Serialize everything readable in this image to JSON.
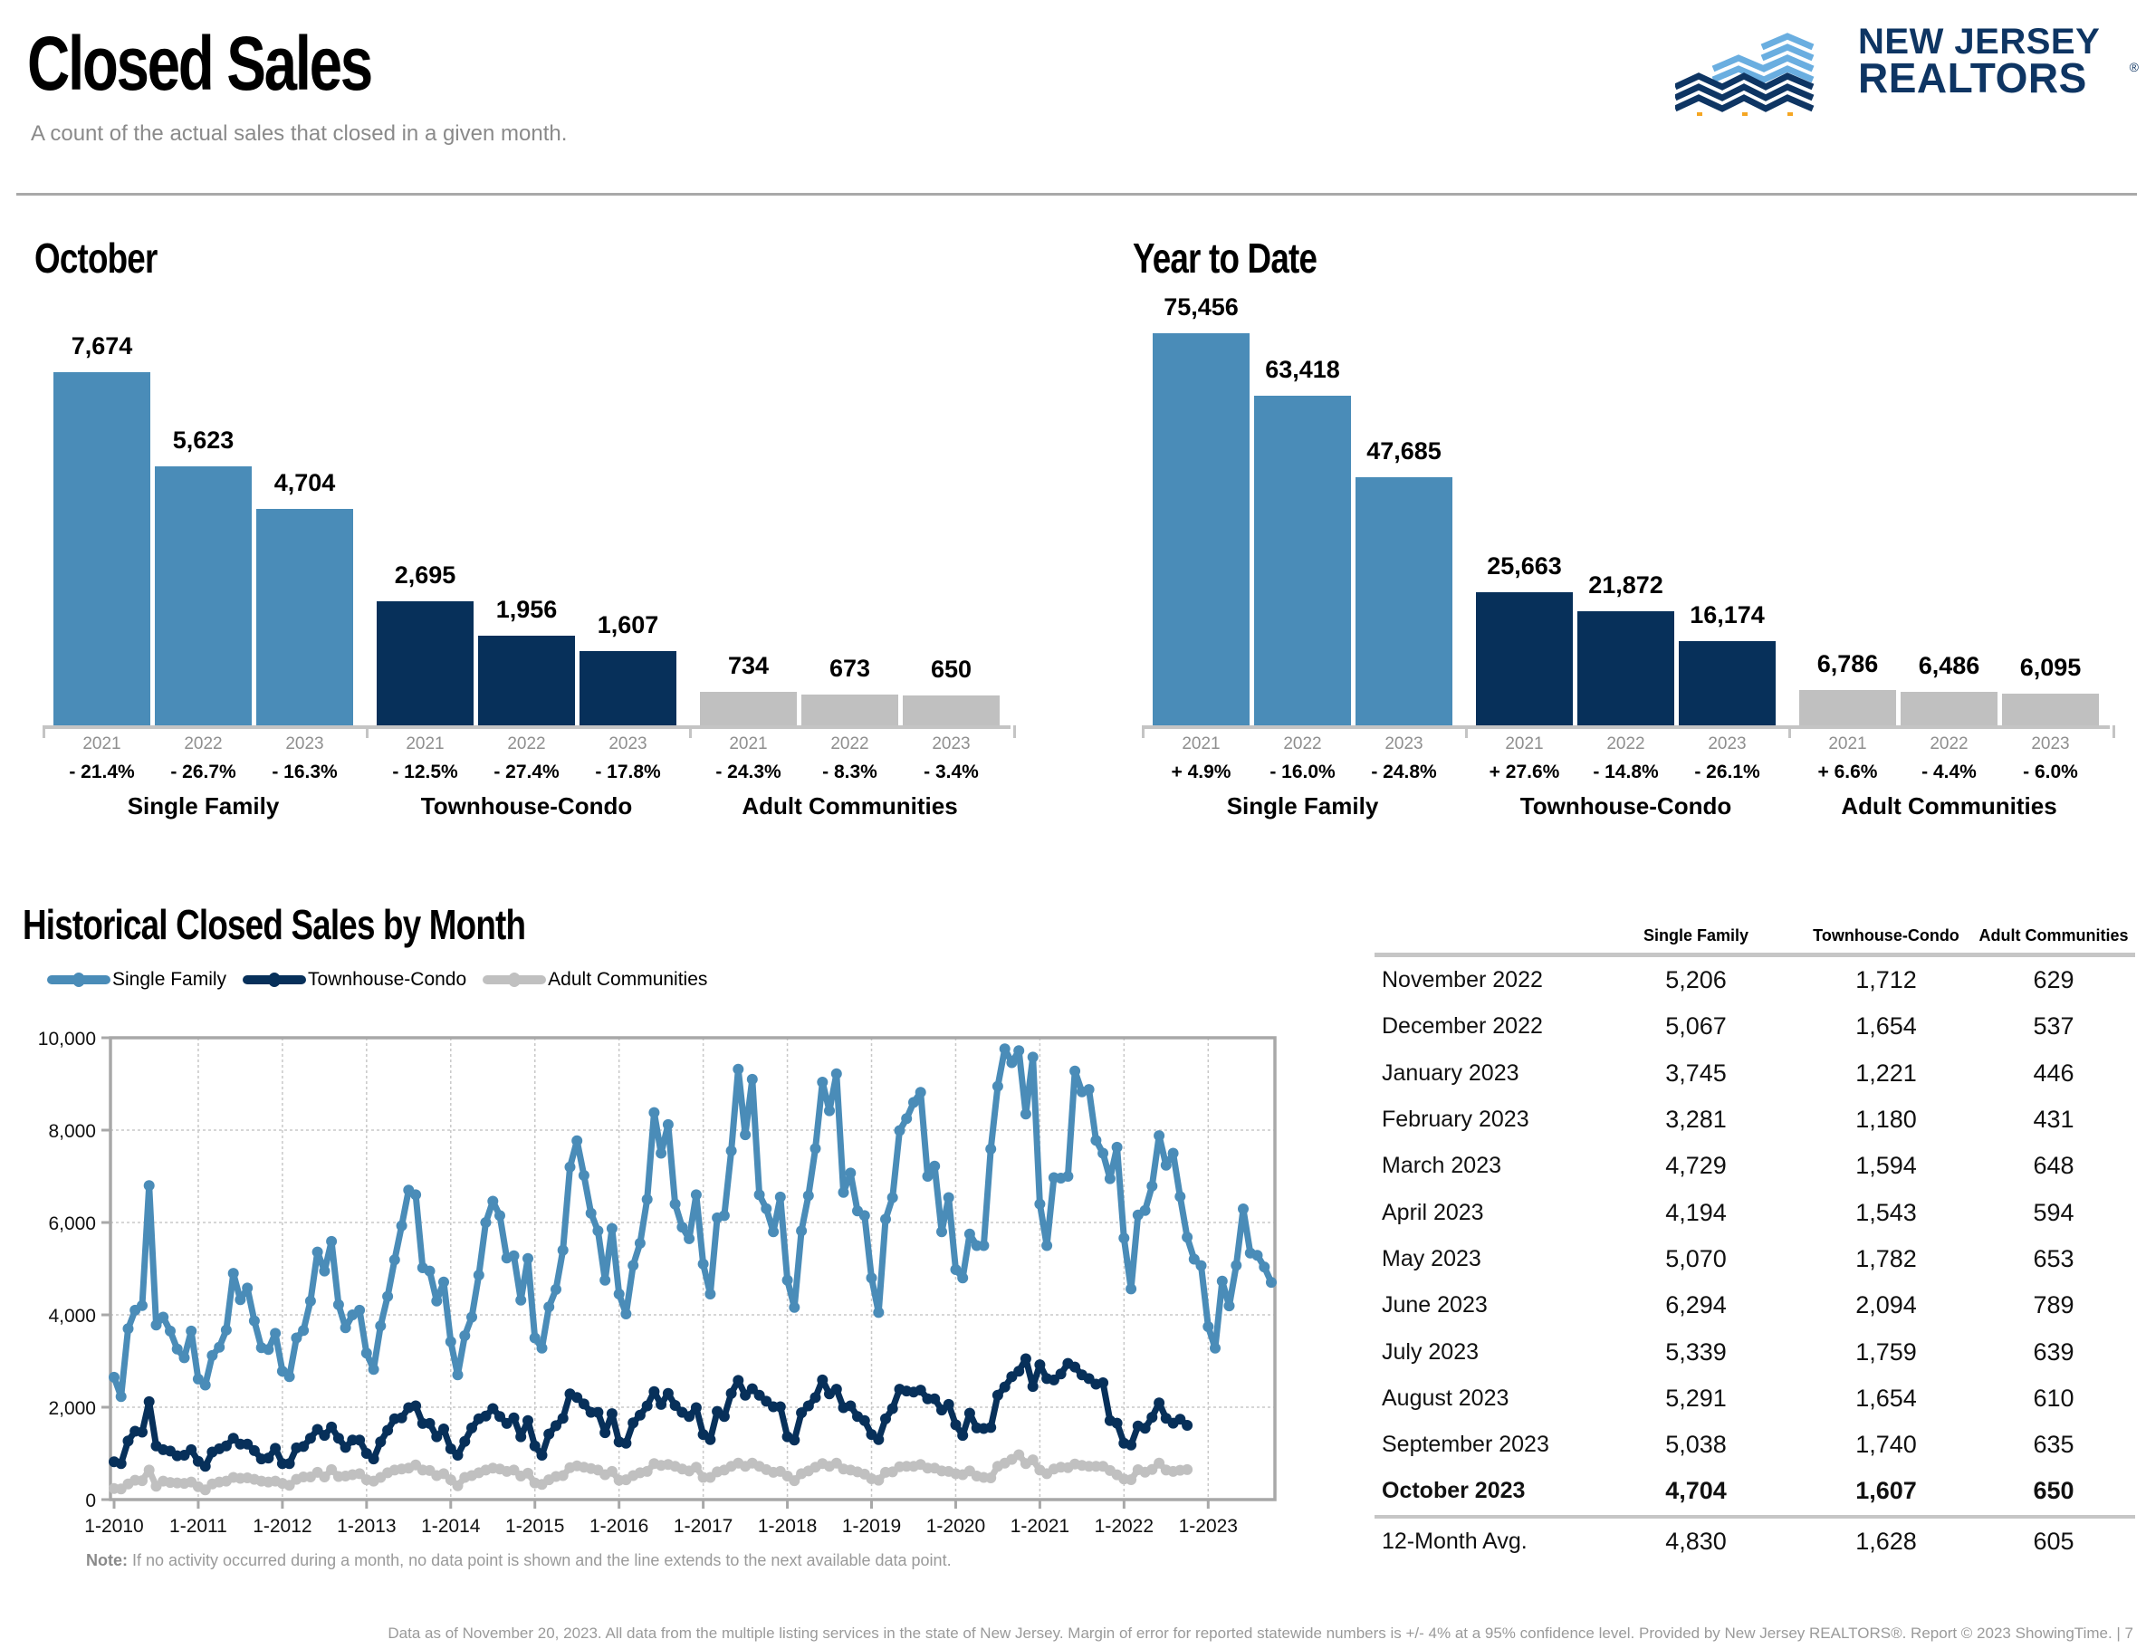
{
  "header": {
    "title": "Closed Sales",
    "subtitle": "A count of the actual sales that closed in a given month."
  },
  "logo": {
    "line1": "NEW JERSEY",
    "line2": "REALTORS",
    "registered": "®",
    "icon": "buildings-chevron-icon"
  },
  "colors": {
    "single_family": "#4a8cb8",
    "townhouse_condo": "#07305a",
    "adult_communities": "#c0c0c0",
    "logo_navy": "#0e3563",
    "logo_light_blue": "#6aaee0",
    "logo_gold": "#f5a623"
  },
  "chart_data": [
    {
      "type": "bar",
      "title": "October",
      "groups": [
        "Single Family",
        "Townhouse-Condo",
        "Adult Communities"
      ],
      "categories": [
        "2021",
        "2022",
        "2023"
      ],
      "series": [
        {
          "name": "Single Family",
          "values": [
            7674,
            5623,
            4704
          ],
          "value_labels": [
            "7,674",
            "5,623",
            "4,704"
          ],
          "pct_change": [
            "- 21.4%",
            "- 26.7%",
            "- 16.3%"
          ]
        },
        {
          "name": "Townhouse-Condo",
          "values": [
            2695,
            1956,
            1607
          ],
          "value_labels": [
            "2,695",
            "1,956",
            "1,607"
          ],
          "pct_change": [
            "- 12.5%",
            "- 27.4%",
            "- 17.8%"
          ]
        },
        {
          "name": "Adult Communities",
          "values": [
            734,
            673,
            650
          ],
          "value_labels": [
            "734",
            "673",
            "650"
          ],
          "pct_change": [
            "- 24.3%",
            "- 8.3%",
            "- 3.4%"
          ]
        }
      ]
    },
    {
      "type": "bar",
      "title": "Year to Date",
      "groups": [
        "Single Family",
        "Townhouse-Condo",
        "Adult Communities"
      ],
      "categories": [
        "2021",
        "2022",
        "2023"
      ],
      "series": [
        {
          "name": "Single Family",
          "values": [
            75456,
            63418,
            47685
          ],
          "value_labels": [
            "75,456",
            "63,418",
            "47,685"
          ],
          "pct_change": [
            "+ 4.9%",
            "- 16.0%",
            "- 24.8%"
          ]
        },
        {
          "name": "Townhouse-Condo",
          "values": [
            25663,
            21872,
            16174
          ],
          "value_labels": [
            "25,663",
            "21,872",
            "16,174"
          ],
          "pct_change": [
            "+ 27.6%",
            "- 14.8%",
            "- 26.1%"
          ]
        },
        {
          "name": "Adult Communities",
          "values": [
            6786,
            6486,
            6095
          ],
          "value_labels": [
            "6,786",
            "6,486",
            "6,095"
          ],
          "pct_change": [
            "+ 6.6%",
            "- 4.4%",
            "- 6.0%"
          ]
        }
      ]
    },
    {
      "type": "line",
      "title": "Historical Closed Sales by Month",
      "x_start": "1-2010",
      "x_tick_labels": [
        "1-2010",
        "1-2011",
        "1-2012",
        "1-2013",
        "1-2014",
        "1-2015",
        "1-2016",
        "1-2017",
        "1-2018",
        "1-2019",
        "1-2020",
        "1-2021",
        "1-2022",
        "1-2023"
      ],
      "y_tick_labels": [
        "0",
        "2,000",
        "4,000",
        "6,000",
        "8,000",
        "10,000"
      ],
      "y_ticks": [
        0,
        2000,
        4000,
        6000,
        8000,
        10000
      ],
      "ylim": [
        0,
        10000
      ],
      "grid": true,
      "legend_position": "top-left",
      "series": [
        {
          "name": "Single Family",
          "values": [
            2650,
            2230,
            3700,
            4100,
            4200,
            6800,
            3780,
            3950,
            3650,
            3260,
            3070,
            3650,
            2610,
            2480,
            3120,
            3300,
            3670,
            4900,
            4330,
            4580,
            3870,
            3290,
            3250,
            3600,
            2780,
            2660,
            3500,
            3660,
            4300,
            5360,
            4950,
            5590,
            4220,
            3720,
            4000,
            4100,
            3170,
            2820,
            3760,
            4400,
            5190,
            5930,
            6700,
            6600,
            5020,
            4950,
            4300,
            4710,
            3420,
            2700,
            3550,
            3950,
            4860,
            6000,
            6460,
            6150,
            5230,
            5280,
            4320,
            5220,
            3500,
            3280,
            4170,
            4550,
            5400,
            7200,
            7770,
            7020,
            6200,
            5820,
            4750,
            5870,
            4450,
            4020,
            5070,
            5550,
            6500,
            8380,
            7500,
            8120,
            6400,
            5900,
            5650,
            6600,
            5100,
            4450,
            6100,
            6150,
            7550,
            9320,
            7900,
            9100,
            6600,
            6300,
            5800,
            6550,
            4750,
            4160,
            5820,
            6580,
            7600,
            9040,
            8420,
            9220,
            6650,
            7070,
            6250,
            6150,
            4800,
            4050,
            6070,
            6540,
            7990,
            8250,
            8600,
            8820,
            7000,
            7220,
            5800,
            6540,
            4980,
            4800,
            5750,
            5500,
            5500,
            7590,
            8950,
            9760,
            9460,
            9720,
            8350,
            9580,
            6400,
            5500,
            6970,
            6960,
            7000,
            9280,
            8830,
            8880,
            7780,
            7500,
            6950,
            7630,
            5660,
            4560,
            6160,
            6260,
            6790,
            7880,
            7240,
            7500,
            6560,
            5680,
            5206,
            5067,
            3745,
            3281,
            4729,
            4194,
            5070,
            6294,
            5339,
            5291,
            5038,
            4704
          ]
        },
        {
          "name": "Townhouse-Condo",
          "values": [
            820,
            780,
            1270,
            1480,
            1460,
            2120,
            1160,
            1080,
            1050,
            950,
            960,
            1080,
            830,
            720,
            1030,
            1100,
            1160,
            1330,
            1200,
            1200,
            1060,
            880,
            900,
            1110,
            780,
            780,
            1120,
            1150,
            1330,
            1520,
            1390,
            1570,
            1330,
            1130,
            1290,
            1290,
            1000,
            880,
            1250,
            1500,
            1750,
            1770,
            1990,
            2030,
            1650,
            1650,
            1360,
            1530,
            1100,
            960,
            1260,
            1550,
            1750,
            1810,
            1970,
            1800,
            1650,
            1770,
            1360,
            1710,
            1160,
            960,
            1420,
            1600,
            1760,
            2290,
            2210,
            2070,
            1890,
            1890,
            1450,
            1860,
            1250,
            1220,
            1660,
            1830,
            2030,
            2340,
            2060,
            2300,
            2040,
            1890,
            1800,
            1990,
            1410,
            1300,
            1910,
            1800,
            2300,
            2580,
            2260,
            2400,
            2260,
            2130,
            2010,
            2010,
            1360,
            1290,
            1880,
            2030,
            2210,
            2590,
            2290,
            2390,
            1990,
            2030,
            1800,
            1710,
            1410,
            1300,
            1750,
            1970,
            2390,
            2350,
            2330,
            2370,
            2180,
            2180,
            1940,
            2060,
            1620,
            1390,
            1870,
            1550,
            1540,
            1560,
            2260,
            2440,
            2660,
            2780,
            3050,
            2450,
            2920,
            2620,
            2590,
            2720,
            2950,
            2870,
            2700,
            2620,
            2500,
            2530,
            1712,
            1654,
            1221,
            1180,
            1594,
            1543,
            1782,
            2094,
            1759,
            1654,
            1740,
            1607
          ]
        },
        {
          "name": "Adult Communities",
          "values": [
            240,
            230,
            340,
            420,
            410,
            640,
            290,
            400,
            370,
            360,
            350,
            380,
            280,
            210,
            340,
            380,
            400,
            480,
            460,
            470,
            440,
            400,
            380,
            400,
            350,
            310,
            440,
            490,
            490,
            590,
            490,
            650,
            500,
            510,
            540,
            560,
            430,
            400,
            480,
            580,
            640,
            660,
            680,
            750,
            640,
            630,
            520,
            560,
            430,
            300,
            480,
            520,
            580,
            640,
            680,
            660,
            610,
            640,
            510,
            570,
            360,
            330,
            430,
            500,
            520,
            690,
            730,
            700,
            670,
            640,
            540,
            610,
            420,
            430,
            520,
            580,
            610,
            780,
            740,
            760,
            720,
            660,
            620,
            700,
            480,
            480,
            600,
            640,
            720,
            790,
            720,
            790,
            720,
            650,
            590,
            610,
            510,
            410,
            560,
            620,
            700,
            780,
            720,
            790,
            660,
            640,
            600,
            550,
            450,
            420,
            590,
            600,
            710,
            720,
            720,
            760,
            680,
            680,
            620,
            610,
            560,
            540,
            620,
            510,
            480,
            470,
            720,
            790,
            870,
            970,
            780,
            860,
            640,
            560,
            660,
            700,
            690,
            770,
            740,
            720,
            720,
            720,
            629,
            537,
            446,
            431,
            648,
            594,
            653,
            789,
            639,
            610,
            635,
            650
          ]
        }
      ]
    }
  ],
  "sections": {
    "october_title": "October",
    "ytd_title": "Year to Date",
    "historical_title": "Historical Closed Sales by Month"
  },
  "legend": [
    {
      "label": "Single Family"
    },
    {
      "label": "Townhouse-Condo"
    },
    {
      "label": "Adult Communities"
    }
  ],
  "note": {
    "label": "Note:",
    "text": " If no activity occurred during a month, no data point is shown and the line extends to the next available data point."
  },
  "table": {
    "headers": [
      "",
      "Single Family",
      "Townhouse-Condo",
      "Adult Communities"
    ],
    "rows": [
      {
        "month": "November 2022",
        "sf": "5,206",
        "tc": "1,712",
        "ac": "629"
      },
      {
        "month": "December 2022",
        "sf": "5,067",
        "tc": "1,654",
        "ac": "537"
      },
      {
        "month": "January 2023",
        "sf": "3,745",
        "tc": "1,221",
        "ac": "446"
      },
      {
        "month": "February 2023",
        "sf": "3,281",
        "tc": "1,180",
        "ac": "431"
      },
      {
        "month": "March 2023",
        "sf": "4,729",
        "tc": "1,594",
        "ac": "648"
      },
      {
        "month": "April 2023",
        "sf": "4,194",
        "tc": "1,543",
        "ac": "594"
      },
      {
        "month": "May 2023",
        "sf": "5,070",
        "tc": "1,782",
        "ac": "653"
      },
      {
        "month": "June 2023",
        "sf": "6,294",
        "tc": "2,094",
        "ac": "789"
      },
      {
        "month": "July 2023",
        "sf": "5,339",
        "tc": "1,759",
        "ac": "639"
      },
      {
        "month": "August 2023",
        "sf": "5,291",
        "tc": "1,654",
        "ac": "610"
      },
      {
        "month": "September 2023",
        "sf": "5,038",
        "tc": "1,740",
        "ac": "635"
      },
      {
        "month": "October 2023",
        "sf": "4,704",
        "tc": "1,607",
        "ac": "650",
        "bold": true
      }
    ],
    "avg": {
      "month": "12-Month Avg.",
      "sf": "4,830",
      "tc": "1,628",
      "ac": "605"
    }
  },
  "footer": "Data as of November 20, 2023. All data from the multiple listing services in the state of New Jersey. Margin of error for reported statewide numbers is +/- 4% at a 95% confidence level. Provided by New Jersey REALTORS®. Report © 2023 ShowingTime.  |  7"
}
